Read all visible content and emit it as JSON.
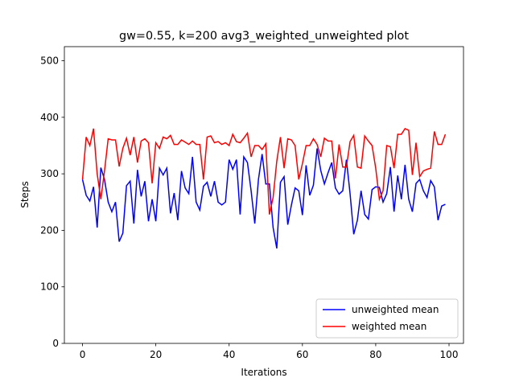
{
  "chart_data": {
    "type": "line",
    "title": "gw=0.55, k=200 avg3_weighted_unweighted plot",
    "x_label": "Iterations",
    "y_label": "Steps",
    "x": [
      0,
      1,
      2,
      3,
      4,
      5,
      6,
      7,
      8,
      9,
      10,
      11,
      12,
      13,
      14,
      15,
      16,
      17,
      18,
      19,
      20,
      21,
      22,
      23,
      24,
      25,
      26,
      27,
      28,
      29,
      30,
      31,
      32,
      33,
      34,
      35,
      36,
      37,
      38,
      39,
      40,
      41,
      42,
      43,
      44,
      45,
      46,
      47,
      48,
      49,
      50,
      51,
      52,
      53,
      54,
      55,
      56,
      57,
      58,
      59,
      60,
      61,
      62,
      63,
      64,
      65,
      66,
      67,
      68,
      69,
      70,
      71,
      72,
      73,
      74,
      75,
      76,
      77,
      78,
      79,
      80,
      81,
      82,
      83,
      84,
      85,
      86,
      87,
      88,
      89,
      90,
      91,
      92,
      93,
      94,
      95,
      96,
      97,
      98,
      99
    ],
    "series": [
      {
        "name": "unweighted mean",
        "color": "#0000ff",
        "values": [
          290,
          262,
          252,
          277,
          205,
          311,
          290,
          250,
          233,
          250,
          180,
          195,
          279,
          287,
          212,
          307,
          260,
          287,
          216,
          255,
          216,
          310,
          298,
          310,
          230,
          266,
          218,
          305,
          275,
          265,
          330,
          250,
          236,
          278,
          285,
          260,
          287,
          250,
          245,
          250,
          325,
          308,
          325,
          228,
          330,
          320,
          270,
          212,
          290,
          335,
          282,
          282,
          205,
          168,
          285,
          295,
          210,
          245,
          275,
          270,
          227,
          315,
          262,
          280,
          345,
          306,
          282,
          302,
          320,
          275,
          264,
          270,
          325,
          265,
          193,
          218,
          270,
          228,
          220,
          272,
          277,
          276,
          250,
          265,
          312,
          233,
          297,
          255,
          316,
          255,
          233,
          283,
          290,
          270,
          258,
          288,
          277,
          218,
          243,
          246
        ]
      },
      {
        "name": "weighted mean",
        "color": "#ff0000",
        "values": [
          290,
          365,
          350,
          380,
          300,
          255,
          305,
          362,
          360,
          360,
          313,
          345,
          363,
          333,
          365,
          320,
          358,
          362,
          355,
          283,
          355,
          345,
          365,
          362,
          368,
          352,
          352,
          360,
          356,
          352,
          358,
          352,
          352,
          290,
          365,
          367,
          355,
          357,
          352,
          355,
          350,
          370,
          357,
          355,
          363,
          372,
          330,
          350,
          350,
          343,
          353,
          228,
          258,
          322,
          365,
          310,
          362,
          360,
          350,
          290,
          318,
          350,
          350,
          362,
          352,
          330,
          363,
          358,
          358,
          292,
          352,
          312,
          312,
          357,
          368,
          312,
          310,
          367,
          358,
          350,
          310,
          255,
          270,
          350,
          348,
          310,
          370,
          370,
          380,
          377,
          298,
          355,
          295,
          305,
          308,
          310,
          375,
          352,
          352,
          370
        ]
      }
    ],
    "xlim": [
      -4.95,
      103.95
    ],
    "ylim": [
      0,
      525
    ],
    "xticks": [
      0,
      20,
      40,
      60,
      80,
      100
    ],
    "yticks": [
      0,
      100,
      200,
      300,
      400,
      500
    ],
    "grid": false,
    "legend": "lower right"
  }
}
